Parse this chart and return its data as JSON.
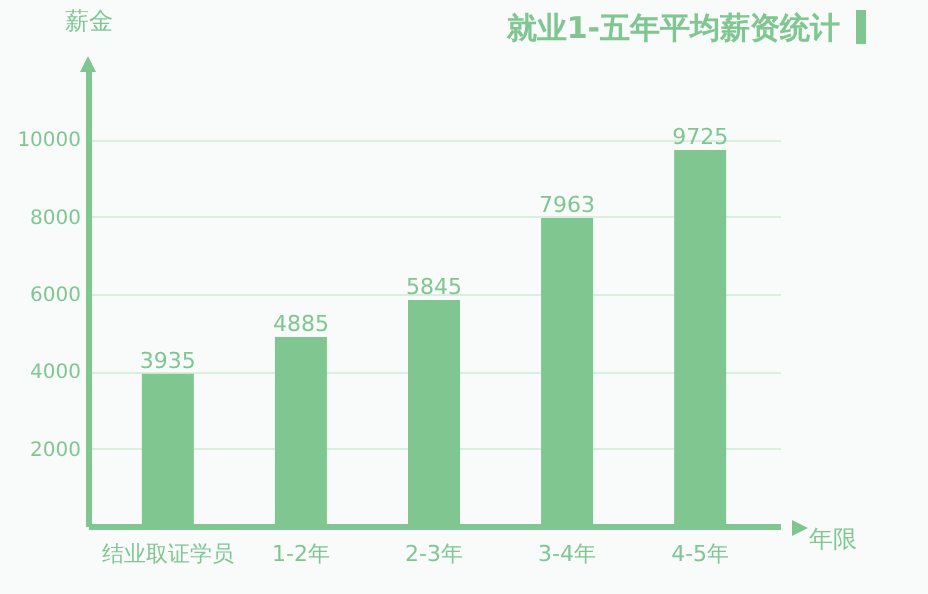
{
  "chart_data": {
    "type": "bar",
    "title": "就业1-五年平均薪资统计",
    "xlabel": "年限",
    "ylabel": "薪金",
    "categories": [
      "结业取证学员",
      "1-2年",
      "2-3年",
      "3-4年",
      "4-5年"
    ],
    "values": [
      3935,
      4885,
      5845,
      7963,
      9725
    ],
    "color": "#7fc691",
    "ylim": [
      0,
      12000
    ],
    "yticks": [
      2000,
      4000,
      6000,
      8000,
      10000
    ],
    "grid": "y",
    "data_labels": true
  }
}
